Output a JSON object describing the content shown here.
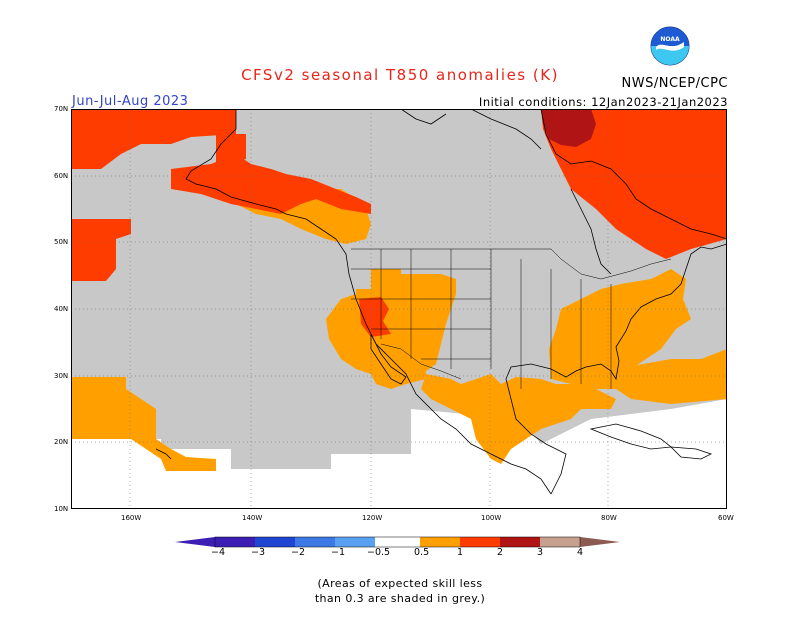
{
  "header": {
    "title": "CFSv2 seasonal T850 anomalies (K)",
    "season": "Jun-Jul-Aug 2023",
    "initial_conditions": "Initial conditions: 12Jan2023-21Jan2023",
    "agency": "NWS/NCEP/CPC",
    "logo_text": "NOAA"
  },
  "map": {
    "lat_labels": [
      "70N",
      "60N",
      "50N",
      "40N",
      "30N",
      "20N",
      "10N"
    ],
    "lon_labels": [
      "160W",
      "140W",
      "120W",
      "100W",
      "80W",
      "60W"
    ],
    "colors": {
      "grey_low_skill": "#c8c8c8",
      "white": "#ffffff",
      "orange_0_5_1": "#ffa000",
      "red_1_2": "#ff3c00",
      "dark_red_2_3": "#b01414",
      "coastline": "#000000"
    }
  },
  "colorbar": {
    "labels": [
      "−4",
      "−3",
      "−2",
      "−1",
      "−0.5",
      "0.5",
      "1",
      "2",
      "3",
      "4"
    ],
    "colors": [
      "#3c1eb4",
      "#1e46d2",
      "#3c78e6",
      "#5aa0f0",
      "#8cc8f8",
      "#ffffff",
      "#ffa000",
      "#ff3c00",
      "#b01414",
      "#dc3c28",
      "#c8a090",
      "#8c5a50"
    ]
  },
  "note": {
    "line1": "(Areas of expected skill less",
    "line2": "than 0.3 are shaded in grey.)"
  }
}
